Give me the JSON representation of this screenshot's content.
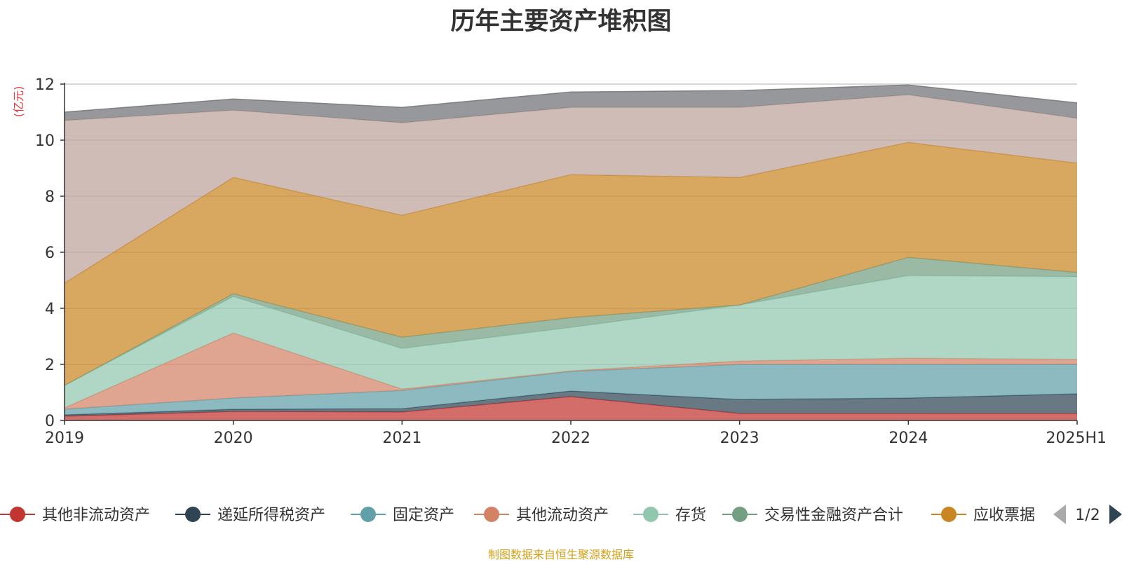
{
  "chart_data": {
    "type": "area",
    "stacked": true,
    "title": "历年主要资产堆积图",
    "ylabel": "(亿元)",
    "xlabel": "",
    "x": [
      "2019",
      "2020",
      "2021",
      "2022",
      "2023",
      "2024",
      "2025H1"
    ],
    "ylim": [
      0,
      12
    ],
    "yticks": [
      "0",
      "2",
      "4",
      "6",
      "8",
      "10",
      "12"
    ],
    "grid": true,
    "legend_position": "bottom",
    "legend_page": "1/2",
    "series": [
      {
        "name": "其他非流动资产",
        "color": "#c23531",
        "values": [
          0.15,
          0.32,
          0.3,
          0.85,
          0.25,
          0.25,
          0.25
        ]
      },
      {
        "name": "递延所得税资产",
        "color": "#2f4554",
        "values": [
          0.05,
          0.08,
          0.12,
          0.2,
          0.5,
          0.55,
          0.7
        ]
      },
      {
        "name": "固定资产",
        "color": "#61a0a8",
        "values": [
          0.2,
          0.4,
          0.65,
          0.7,
          1.25,
          1.2,
          1.05
        ]
      },
      {
        "name": "其他流动资产",
        "color": "#d48265",
        "values": [
          0.05,
          2.32,
          0.05,
          0.02,
          0.12,
          0.22,
          0.18
        ]
      },
      {
        "name": "存货",
        "color": "#91c7ae",
        "values": [
          0.8,
          1.3,
          1.45,
          1.55,
          2.0,
          2.95,
          2.95
        ]
      },
      {
        "name": "交易性金融资产合计",
        "color": "#749f83",
        "values": [
          0.0,
          0.1,
          0.4,
          0.35,
          0.0,
          0.65,
          0.15
        ]
      },
      {
        "name": "应收票据",
        "color": "#ca8622",
        "values": [
          3.65,
          4.15,
          4.35,
          5.1,
          4.55,
          4.1,
          3.9
        ]
      },
      {
        "name": "",
        "color": "#bda29a",
        "values": [
          5.8,
          2.4,
          3.3,
          2.4,
          2.5,
          1.7,
          1.6
        ]
      },
      {
        "name": "",
        "color": "#6e7074",
        "values": [
          0.3,
          0.4,
          0.55,
          0.55,
          0.6,
          0.35,
          0.55
        ]
      }
    ]
  },
  "legend": {
    "prev_icon": "triangle-left-icon",
    "next_icon": "triangle-right-icon"
  },
  "footer": {
    "source": "制图数据来自恒生聚源数据库"
  }
}
